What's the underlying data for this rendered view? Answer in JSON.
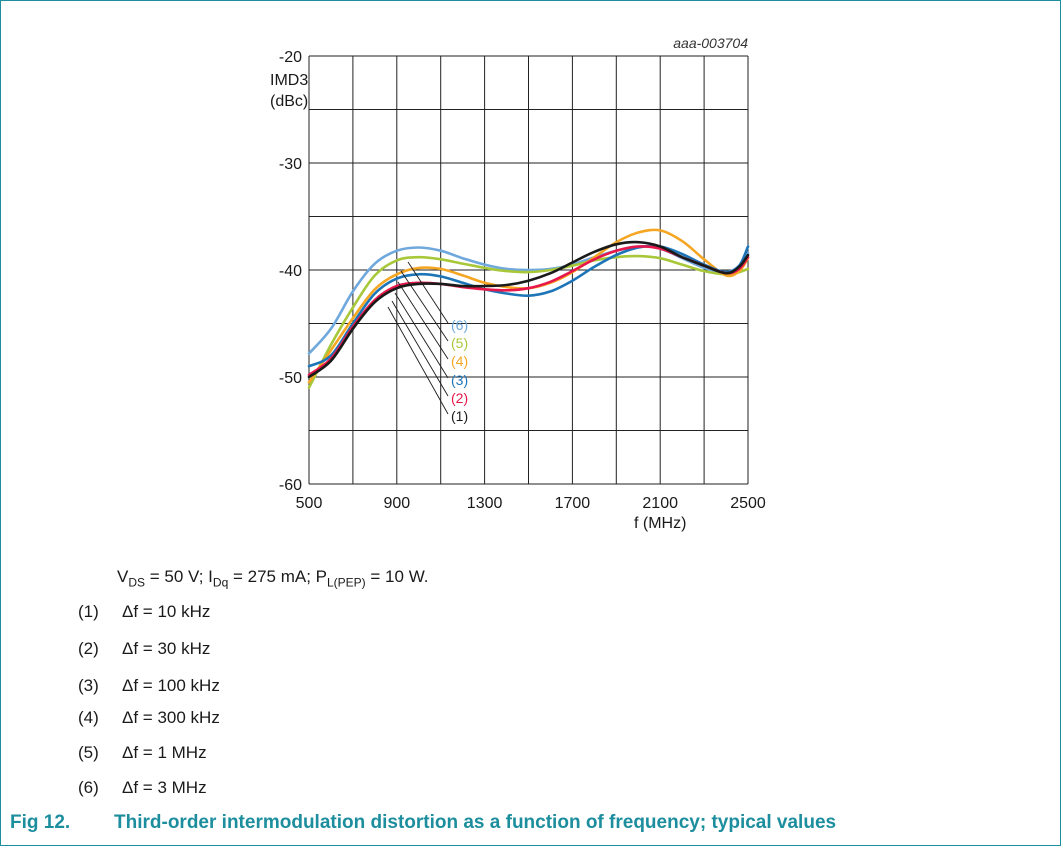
{
  "chart_data": {
    "type": "line",
    "code": "aaa-003704",
    "ylabel": [
      "IMD3",
      "(dBc)"
    ],
    "xlabel": "f (MHz)",
    "xlim": [
      500,
      2500
    ],
    "ylim": [
      -60,
      -20
    ],
    "xticks": [
      500,
      900,
      1300,
      1700,
      2100,
      2500
    ],
    "yticks": [
      -20,
      -30,
      -40,
      -50,
      -60
    ],
    "grid": true,
    "series": [
      {
        "name": "(1)",
        "color": "#1a1a1a",
        "x": [
          500,
          600,
          700,
          800,
          900,
          1000,
          1100,
          1200,
          1300,
          1400,
          1500,
          1600,
          1700,
          1800,
          1900,
          2000,
          2100,
          2200,
          2300,
          2400,
          2460,
          2500
        ],
        "y": [
          -50.0,
          -48.5,
          -45.5,
          -43.0,
          -41.7,
          -41.3,
          -41.3,
          -41.5,
          -41.5,
          -41.4,
          -41.0,
          -40.3,
          -39.3,
          -38.3,
          -37.6,
          -37.4,
          -37.8,
          -38.8,
          -39.6,
          -40.3,
          -39.7,
          -38.6
        ]
      },
      {
        "name": "(2)",
        "color": "#e8174b",
        "x": [
          500,
          600,
          700,
          800,
          900,
          1000,
          1100,
          1200,
          1300,
          1400,
          1500,
          1600,
          1700,
          1800,
          1900,
          2000,
          2100,
          2200,
          2300,
          2400,
          2460,
          2500
        ],
        "y": [
          -49.8,
          -48.3,
          -45.3,
          -42.8,
          -41.5,
          -41.2,
          -41.3,
          -41.6,
          -41.8,
          -41.9,
          -41.7,
          -41.1,
          -40.1,
          -39.0,
          -38.2,
          -37.8,
          -38.0,
          -38.8,
          -39.6,
          -40.3,
          -39.9,
          -38.8
        ]
      },
      {
        "name": "(3)",
        "color": "#1d75b8",
        "x": [
          500,
          600,
          700,
          800,
          900,
          1000,
          1100,
          1200,
          1300,
          1400,
          1500,
          1600,
          1700,
          1800,
          1900,
          2000,
          2100,
          2200,
          2300,
          2400,
          2460,
          2500
        ],
        "y": [
          -49.0,
          -48.0,
          -45.0,
          -42.2,
          -40.8,
          -40.4,
          -40.6,
          -41.2,
          -41.8,
          -42.2,
          -42.4,
          -42.0,
          -41.0,
          -39.7,
          -38.6,
          -37.9,
          -37.8,
          -38.5,
          -39.5,
          -40.2,
          -39.6,
          -37.8
        ]
      },
      {
        "name": "(4)",
        "color": "#f5a623",
        "x": [
          500,
          600,
          700,
          800,
          900,
          1000,
          1100,
          1200,
          1300,
          1400,
          1500,
          1600,
          1700,
          1800,
          1900,
          2000,
          2100,
          2200,
          2300,
          2400,
          2460,
          2500
        ],
        "y": [
          -50.5,
          -47.5,
          -44.5,
          -41.8,
          -40.4,
          -39.8,
          -39.9,
          -40.5,
          -41.2,
          -41.6,
          -41.7,
          -41.2,
          -40.2,
          -38.8,
          -37.4,
          -36.5,
          -36.3,
          -37.3,
          -39.0,
          -40.5,
          -40.1,
          -38.9
        ]
      },
      {
        "name": "(5)",
        "color": "#a8c83a",
        "x": [
          500,
          600,
          700,
          800,
          900,
          1000,
          1100,
          1200,
          1300,
          1400,
          1500,
          1600,
          1700,
          1800,
          1900,
          2000,
          2100,
          2200,
          2300,
          2400,
          2460,
          2500
        ],
        "y": [
          -51.0,
          -47.0,
          -43.5,
          -40.5,
          -39.1,
          -38.8,
          -39.0,
          -39.4,
          -39.8,
          -40.1,
          -40.2,
          -40.0,
          -39.6,
          -39.1,
          -38.8,
          -38.7,
          -38.9,
          -39.5,
          -40.1,
          -40.4,
          -40.2,
          -39.9
        ]
      },
      {
        "name": "(6)",
        "color": "#6fa8dc",
        "x": [
          500,
          600,
          700,
          800,
          900,
          1000,
          1100,
          1200,
          1300,
          1400,
          1500,
          1600,
          1700,
          1800,
          1900,
          2000,
          2100,
          2200,
          2300,
          2400,
          2460,
          2500
        ],
        "y": [
          -47.8,
          -45.5,
          -42.0,
          -39.4,
          -38.2,
          -37.9,
          -38.2,
          -38.9,
          -39.5,
          -39.9,
          -40.0,
          -39.9,
          -39.5,
          -38.8,
          -38.2,
          -37.8,
          -38.0,
          -38.9,
          -39.8,
          -40.2,
          -39.6,
          -38.4
        ]
      }
    ],
    "annotation_labels": [
      "(6)",
      "(5)",
      "(4)",
      "(3)",
      "(2)",
      "(1)"
    ]
  },
  "conditions": {
    "vds_label": "V",
    "vds_sub": "DS",
    "vds_rest": " = 50 V; I",
    "idq_sub": "Dq",
    "idq_rest": " = 275 mA; P",
    "pl_sub": "L(PEP)",
    "pl_rest": " = 10 W."
  },
  "legend": [
    {
      "num": "(1)",
      "text": "Δf = 10 kHz"
    },
    {
      "num": "(2)",
      "text": "Δf = 30 kHz"
    },
    {
      "num": "(3)",
      "text": "Δf = 100 kHz"
    },
    {
      "num": "(4)",
      "text": "Δf = 300 kHz"
    },
    {
      "num": "(5)",
      "text": "Δf = 1 MHz"
    },
    {
      "num": "(6)",
      "text": "Δf = 3 MHz"
    }
  ],
  "caption": {
    "number": "Fig 12.",
    "text": "Third-order intermodulation distortion as a function of frequency; typical values"
  },
  "colors": {
    "accent": "#1d8e9e",
    "grid": "#222222"
  }
}
